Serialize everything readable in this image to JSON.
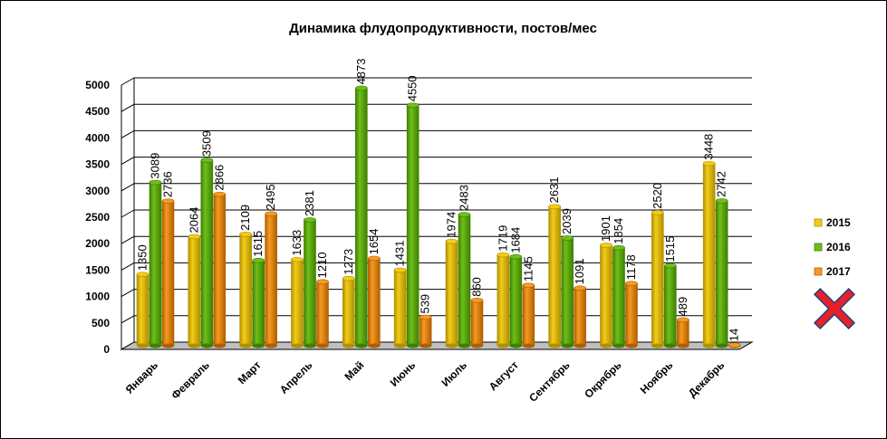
{
  "colors": {
    "s2015": "#f3cc1a",
    "s2015_dark": "#b08f00",
    "s2016": "#6fbf1a",
    "s2016_dark": "#3f7f00",
    "s2017": "#f59a23",
    "s2017_dark": "#b05e00",
    "cross": "#e8202a",
    "cross_outline": "#1f3f7f"
  },
  "chart_data": {
    "type": "bar",
    "title": "Динамика флудопродуктивности, постов/мес",
    "xlabel": "",
    "ylabel": "",
    "ylim": [
      0,
      5000
    ],
    "yticks": [
      0,
      500,
      1000,
      1500,
      2000,
      2500,
      3000,
      3500,
      4000,
      4500,
      5000
    ],
    "grid": true,
    "legend_position": "right",
    "categories": [
      "Январь",
      "Февраль",
      "Март",
      "Апрель",
      "Май",
      "Июнь",
      "Июль",
      "Август",
      "Сентябрь",
      "Окрябрь",
      "Ноябрь",
      "Декабрь"
    ],
    "series": [
      {
        "name": "2015",
        "values": [
          1350,
          2064,
          2109,
          1633,
          1273,
          1431,
          1974,
          1719,
          2631,
          1901,
          2520,
          3448
        ]
      },
      {
        "name": "2016",
        "values": [
          3089,
          3509,
          1615,
          2381,
          4873,
          4550,
          2483,
          1684,
          2039,
          1854,
          1515,
          2742
        ]
      },
      {
        "name": "2017",
        "values": [
          2736,
          2866,
          2495,
          1210,
          1654,
          539,
          860,
          1145,
          1091,
          1178,
          489,
          14
        ]
      }
    ]
  },
  "legend_icon": "close-cross-icon"
}
